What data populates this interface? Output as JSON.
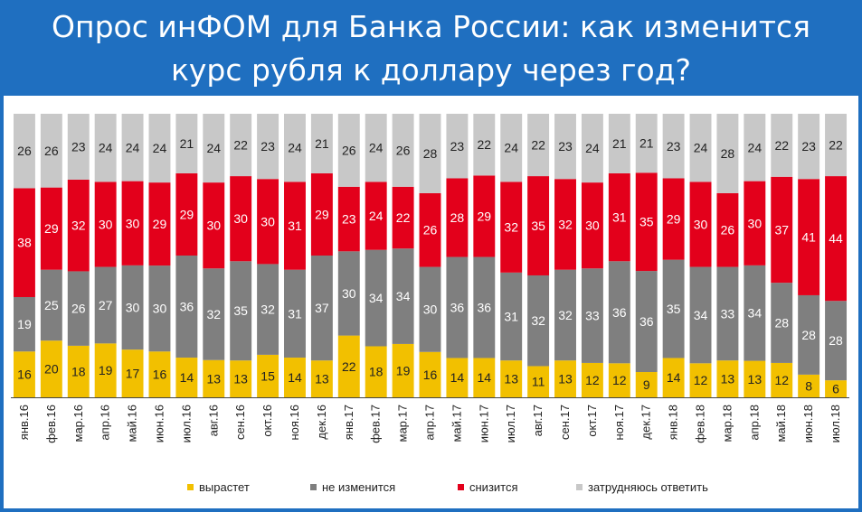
{
  "header": {
    "title_line1": "Опрос инФОМ для Банка России: как изменится",
    "title_line2": "курс рубля к доллару через год?"
  },
  "chart_data": {
    "type": "bar",
    "stacked": true,
    "categories": [
      "янв.16",
      "фев.16",
      "мар.16",
      "апр.16",
      "май.16",
      "июн.16",
      "июл.16",
      "авг.16",
      "сен.16",
      "окт.16",
      "ноя.16",
      "дек.16",
      "янв.17",
      "фев.17",
      "мар.17",
      "апр.17",
      "май.17",
      "июн.17",
      "июл.17",
      "авг.17",
      "сен.17",
      "окт.17",
      "ноя.17",
      "дек.17",
      "янв.18",
      "фев.18",
      "мар.18",
      "апр.18",
      "май.18",
      "июн.18",
      "июл.18"
    ],
    "series": [
      {
        "name": "вырастет",
        "color": "#f2c000",
        "label_color": "#222222",
        "values": [
          16,
          20,
          18,
          19,
          17,
          16,
          14,
          13,
          13,
          15,
          14,
          13,
          22,
          18,
          19,
          16,
          14,
          14,
          13,
          11,
          13,
          12,
          12,
          9,
          14,
          12,
          13,
          13,
          12,
          8,
          6
        ]
      },
      {
        "name": "не изменится",
        "color": "#7f7f7f",
        "label_color": "#ffffff",
        "values": [
          19,
          25,
          26,
          27,
          30,
          30,
          36,
          32,
          35,
          32,
          31,
          37,
          30,
          34,
          34,
          30,
          36,
          36,
          31,
          32,
          32,
          33,
          36,
          36,
          35,
          34,
          33,
          34,
          28,
          28,
          28
        ]
      },
      {
        "name": "снизится",
        "color": "#e3001b",
        "label_color": "#ffffff",
        "values": [
          38,
          29,
          32,
          30,
          30,
          29,
          29,
          30,
          30,
          30,
          31,
          29,
          23,
          24,
          22,
          26,
          28,
          29,
          32,
          35,
          32,
          30,
          31,
          35,
          29,
          30,
          26,
          30,
          37,
          41,
          44
        ]
      },
      {
        "name": "затрудняюсь ответить",
        "color": "#c8c8c8",
        "label_color": "#222222",
        "values": [
          26,
          26,
          23,
          24,
          24,
          24,
          21,
          24,
          22,
          23,
          24,
          21,
          26,
          24,
          26,
          28,
          23,
          22,
          24,
          22,
          23,
          24,
          21,
          21,
          23,
          24,
          28,
          24,
          22,
          23,
          22
        ]
      }
    ],
    "grid": false,
    "legend_position": "bottom"
  }
}
